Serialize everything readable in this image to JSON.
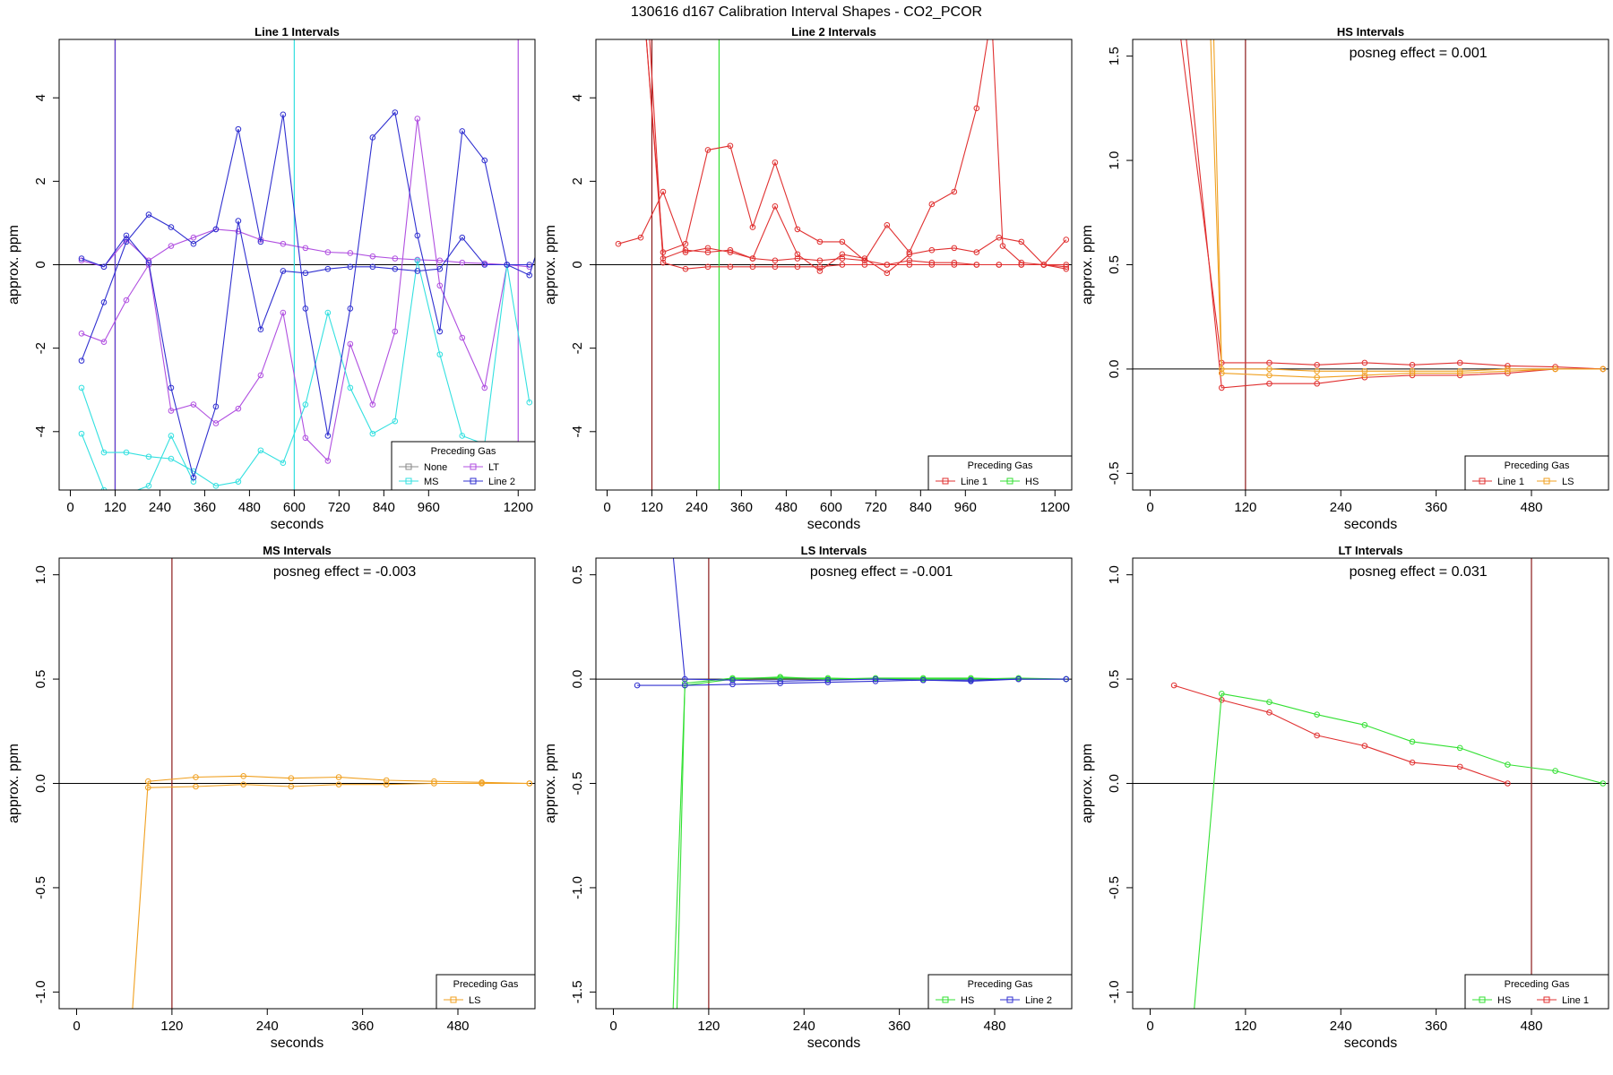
{
  "page_title": "130616  d167   Calibration Interval Shapes - CO2_PCOR",
  "chart_data": [
    {
      "type": "line",
      "title": "Line 1 Intervals",
      "xlabel": "seconds",
      "ylabel": "approx. ppm",
      "xlim": [
        -30,
        1245
      ],
      "ylim": [
        -5.4,
        5.4
      ],
      "xticks": [
        0,
        120,
        240,
        360,
        480,
        600,
        720,
        840,
        960,
        1200
      ],
      "yticks": [
        -4,
        -2,
        0,
        2,
        4
      ],
      "vlines": [
        {
          "x": 120,
          "color": "#8b1a1a"
        },
        {
          "x": 120,
          "color": "#5a3fd6"
        },
        {
          "x": 600,
          "color": "#33e0e0"
        },
        {
          "x": 1200,
          "color": "#b04fe0"
        }
      ],
      "legend": {
        "title": "Preceding Gas",
        "position": "bottom-right",
        "columns": 2,
        "entries": [
          {
            "label": "None",
            "color": "#8a8a8a"
          },
          {
            "label": "LT",
            "color": "#b04fe0"
          },
          {
            "label": "MS",
            "color": "#33e0e0"
          },
          {
            "label": "Line 2",
            "color": "#3030d0"
          }
        ]
      },
      "series": [
        {
          "color": "#b04fe0",
          "x": [
            30,
            90,
            150,
            210,
            270,
            330,
            390,
            450,
            510,
            570,
            630,
            690,
            750,
            810,
            870,
            930,
            990,
            1050,
            1110,
            1170,
            1230
          ],
          "y": [
            0.1,
            -0.05,
            0.6,
            0.1,
            0.45,
            0.65,
            0.85,
            0.8,
            0.6,
            0.5,
            0.4,
            0.3,
            0.28,
            0.2,
            0.15,
            0.12,
            0.1,
            0.05,
            0.03,
            0.0,
            -0.05
          ]
        },
        {
          "color": "#b04fe0",
          "x": [
            30,
            90,
            150,
            210,
            270,
            330,
            390,
            450,
            510,
            570,
            630,
            690,
            750,
            810,
            870,
            930,
            990,
            1050,
            1110,
            1170
          ],
          "y": [
            -1.65,
            -1.85,
            -0.85,
            0.0,
            -3.5,
            -3.35,
            -3.8,
            -3.45,
            -2.65,
            -1.15,
            -4.15,
            -4.7,
            -1.9,
            -3.35,
            -1.6,
            3.5,
            -0.5,
            -1.75,
            -2.95,
            0.0
          ]
        },
        {
          "color": "#33e0e0",
          "x": [
            30,
            90,
            150,
            210,
            270,
            330,
            390,
            450,
            510,
            570,
            630,
            690,
            750,
            810,
            870,
            930,
            990,
            1050,
            1110,
            1170,
            1230
          ],
          "y": [
            -2.95,
            -4.5,
            -4.5,
            -4.6,
            -4.65,
            -4.95,
            -5.3,
            -5.2,
            -4.45,
            -4.75,
            -3.35,
            -1.15,
            -2.95,
            -4.05,
            -3.75,
            0.1,
            -2.15,
            -4.1,
            -4.3,
            0.0,
            -3.3
          ]
        },
        {
          "color": "#33e0e0",
          "x": [
            30,
            90,
            150,
            210,
            270,
            330
          ],
          "y": [
            -4.05,
            -5.4,
            -5.5,
            -5.3,
            -4.1,
            -5.2
          ]
        },
        {
          "color": "#3030d0",
          "x": [
            30,
            90,
            150,
            210,
            270,
            330,
            390,
            450,
            510,
            570,
            630,
            690,
            750,
            810,
            870,
            930,
            990,
            1050,
            1110,
            1170,
            1230,
            1260
          ],
          "y": [
            -2.3,
            -0.9,
            0.55,
            1.2,
            0.9,
            0.5,
            0.85,
            3.25,
            0.55,
            3.6,
            -1.05,
            -4.1,
            -1.05,
            3.05,
            3.65,
            0.7,
            -1.6,
            3.2,
            2.5,
            0.0,
            -0.25,
            0.6
          ]
        },
        {
          "color": "#3030d0",
          "x": [
            30,
            90,
            150,
            210,
            270,
            330,
            390,
            450,
            510,
            570,
            630,
            690,
            750,
            810,
            870,
            930,
            990,
            1050,
            1110,
            1170,
            1230
          ],
          "y": [
            0.15,
            -0.05,
            0.7,
            0.05,
            -2.95,
            -5.1,
            -3.4,
            1.05,
            -1.55,
            -0.15,
            -0.2,
            -0.1,
            -0.05,
            -0.05,
            -0.1,
            -0.15,
            -0.1,
            0.65,
            0.0,
            0.0,
            0.0
          ]
        }
      ]
    },
    {
      "type": "line",
      "title": "Line 2 Intervals",
      "xlabel": "seconds",
      "ylabel": "approx. ppm",
      "xlim": [
        -30,
        1245
      ],
      "ylim": [
        -5.4,
        5.4
      ],
      "xticks": [
        0,
        120,
        240,
        360,
        480,
        600,
        720,
        840,
        960,
        1200
      ],
      "yticks": [
        -4,
        -2,
        0,
        2,
        4
      ],
      "vlines": [
        {
          "x": 120,
          "color": "#8b1a1a"
        },
        {
          "x": 300,
          "color": "#33e033"
        }
      ],
      "legend": {
        "title": "Preceding Gas",
        "position": "bottom-right",
        "columns": 2,
        "entries": [
          {
            "label": "Line 1",
            "color": "#e03030"
          },
          {
            "label": "HS",
            "color": "#33e033"
          }
        ]
      },
      "series": [
        {
          "color": "#e03030",
          "x": [
            30,
            90,
            150,
            210,
            270,
            330,
            390,
            450,
            510,
            570,
            630,
            690,
            750,
            810,
            870,
            930,
            990,
            1050,
            1110,
            1170,
            1230
          ],
          "y": [
            0.5,
            0.65,
            1.75,
            0.3,
            0.4,
            0.3,
            0.15,
            0.1,
            0.15,
            0.1,
            0.15,
            0.1,
            0.0,
            0.1,
            0.05,
            0.05,
            0.0,
            0.0,
            0.0,
            0.0,
            0.6
          ]
        },
        {
          "color": "#e03030",
          "x": [
            100,
            150,
            210,
            270,
            330,
            390,
            450,
            510,
            570,
            630,
            690,
            750,
            810,
            870,
            930,
            990,
            1030,
            1060,
            1110,
            1170,
            1230
          ],
          "y": [
            6.0,
            0.3,
            0.5,
            2.75,
            2.85,
            0.9,
            2.45,
            0.85,
            0.55,
            0.55,
            0.1,
            0.95,
            0.3,
            1.45,
            1.75,
            3.75,
            6.0,
            0.45,
            0.05,
            0.0,
            0.0
          ]
        },
        {
          "color": "#e03030",
          "x": [
            100,
            150,
            210,
            270,
            330,
            390,
            450,
            510,
            570,
            630,
            690,
            750,
            810,
            870,
            930,
            990,
            1050,
            1110,
            1170,
            1230
          ],
          "y": [
            6.0,
            0.15,
            0.35,
            0.3,
            0.35,
            0.15,
            1.4,
            0.25,
            -0.15,
            0.25,
            0.15,
            -0.2,
            0.25,
            0.35,
            0.4,
            0.3,
            0.65,
            0.55,
            0.0,
            -0.1
          ]
        },
        {
          "color": "#e03030",
          "x": [
            110,
            150,
            210,
            270,
            330,
            390,
            450,
            510,
            570,
            630,
            690,
            750,
            810,
            870,
            930,
            990,
            1050,
            1110,
            1170,
            1230
          ],
          "y": [
            6.0,
            0.05,
            -0.1,
            -0.05,
            -0.05,
            -0.05,
            -0.05,
            -0.05,
            -0.05,
            0.0,
            0.0,
            0.0,
            0.0,
            0.0,
            0.0,
            0.0,
            0.0,
            0.0,
            0.0,
            -0.05
          ]
        }
      ]
    },
    {
      "type": "line",
      "title": "HS Intervals",
      "xlabel": "seconds",
      "ylabel": "approx. ppm",
      "annotation": "posneg effect = 0.001",
      "xlim": [
        -22,
        577
      ],
      "ylim": [
        -0.58,
        1.58
      ],
      "xticks": [
        0,
        120,
        240,
        360,
        480
      ],
      "yticks": [
        -0.5,
        0.0,
        0.5,
        1.0,
        1.5
      ],
      "vlines": [
        {
          "x": 120,
          "color": "#8b1a1a"
        }
      ],
      "legend": {
        "title": "Preceding Gas",
        "position": "bottom-right",
        "columns": 2,
        "entries": [
          {
            "label": "Line 1",
            "color": "#e03030"
          },
          {
            "label": "LS",
            "color": "#f0a020"
          }
        ]
      },
      "series": [
        {
          "color": "#e03030",
          "x": [
            38,
            90,
            150,
            210,
            270,
            330,
            390,
            450,
            510,
            570
          ],
          "y": [
            1.6,
            0.03,
            0.03,
            0.02,
            0.03,
            0.02,
            0.03,
            0.015,
            0.01,
            0.0
          ]
        },
        {
          "color": "#e03030",
          "x": [
            45,
            90,
            150,
            210,
            270,
            330,
            390,
            450,
            510,
            570
          ],
          "y": [
            1.6,
            -0.09,
            -0.07,
            -0.07,
            -0.04,
            -0.03,
            -0.03,
            -0.02,
            0.0,
            0.0
          ]
        },
        {
          "color": "#f0a020",
          "x": [
            76,
            90,
            150,
            210,
            270,
            330,
            390,
            450,
            510,
            570
          ],
          "y": [
            1.6,
            -0.02,
            -0.03,
            -0.04,
            -0.03,
            -0.02,
            -0.02,
            -0.01,
            0.0,
            0.0
          ]
        },
        {
          "color": "#f0a020",
          "x": [
            80,
            90,
            150,
            210,
            270,
            330,
            390,
            450,
            510,
            570
          ],
          "y": [
            1.6,
            0.0,
            0.0,
            -0.01,
            -0.01,
            -0.01,
            -0.01,
            0.0,
            0.0,
            0.0
          ]
        }
      ]
    },
    {
      "type": "line",
      "title": "MS Intervals",
      "xlabel": "seconds",
      "ylabel": "approx. ppm",
      "annotation": "posneg effect = -0.003",
      "xlim": [
        -22,
        577
      ],
      "ylim": [
        -1.08,
        1.08
      ],
      "xticks": [
        0,
        120,
        240,
        360,
        480
      ],
      "yticks": [
        -1.0,
        -0.5,
        0.0,
        0.5,
        1.0
      ],
      "vlines": [
        {
          "x": 120,
          "color": "#8b1a1a"
        }
      ],
      "legend": {
        "title": "Preceding Gas",
        "position": "bottom-right",
        "columns": 1,
        "entries": [
          {
            "label": "LS",
            "color": "#f0a020"
          }
        ]
      },
      "series": [
        {
          "color": "#f0a020",
          "x": [
            70,
            90,
            150,
            210,
            270,
            330,
            390,
            450,
            510,
            570
          ],
          "y": [
            -1.1,
            0.01,
            0.03,
            0.035,
            0.025,
            0.03,
            0.015,
            0.01,
            0.005,
            0.0
          ]
        },
        {
          "color": "#f0a020",
          "x": [
            90,
            150,
            210,
            270,
            330,
            390,
            450,
            510,
            570
          ],
          "y": [
            -0.02,
            -0.015,
            -0.005,
            -0.015,
            -0.005,
            -0.005,
            0.0,
            0.0,
            0.0
          ]
        }
      ]
    },
    {
      "type": "line",
      "title": "LS Intervals",
      "xlabel": "seconds",
      "ylabel": "approx. ppm",
      "annotation": "posneg effect = -0.001",
      "xlim": [
        -22,
        577
      ],
      "ylim": [
        -1.58,
        0.58
      ],
      "xticks": [
        0,
        120,
        240,
        360,
        480
      ],
      "yticks": [
        -1.5,
        -1.0,
        -0.5,
        0.0,
        0.5
      ],
      "vlines": [
        {
          "x": 120,
          "color": "#8b1a1a"
        }
      ],
      "legend": {
        "title": "Preceding Gas",
        "position": "bottom-right",
        "columns": 2,
        "entries": [
          {
            "label": "HS",
            "color": "#33e033"
          },
          {
            "label": "Line 2",
            "color": "#3030d0"
          }
        ]
      },
      "series": [
        {
          "color": "#33e033",
          "x": [
            75,
            90,
            150,
            210,
            270,
            330,
            390,
            450,
            510,
            570
          ],
          "y": [
            -1.6,
            -0.03,
            0.0,
            0.01,
            0.0,
            0.005,
            0.005,
            0.005,
            0.0,
            0.0
          ]
        },
        {
          "color": "#33e033",
          "x": [
            80,
            90,
            150,
            210,
            270,
            330,
            390,
            450,
            510,
            570
          ],
          "y": [
            -1.6,
            -0.02,
            0.005,
            0.005,
            0.005,
            0.0,
            0.0,
            0.0,
            0.005,
            0.0
          ]
        },
        {
          "color": "#3030d0",
          "x": [
            30,
            90,
            150,
            210,
            270,
            330,
            390,
            450,
            510,
            570
          ],
          "y": [
            -0.03,
            -0.03,
            -0.025,
            -0.02,
            -0.015,
            -0.01,
            -0.005,
            -0.005,
            0.0,
            0.0
          ]
        },
        {
          "color": "#3030d0",
          "x": [
            75,
            90,
            150,
            210,
            270,
            330,
            390,
            450,
            510,
            570
          ],
          "y": [
            0.6,
            0.0,
            -0.005,
            -0.01,
            -0.005,
            0.0,
            -0.005,
            -0.01,
            0.0,
            0.0
          ]
        }
      ]
    },
    {
      "type": "line",
      "title": "LT Intervals",
      "xlabel": "seconds",
      "ylabel": "approx. ppm",
      "annotation": "posneg effect = 0.031",
      "xlim": [
        -22,
        577
      ],
      "ylim": [
        -1.08,
        1.08
      ],
      "xticks": [
        0,
        120,
        240,
        360,
        480
      ],
      "yticks": [
        -1.0,
        -0.5,
        0.0,
        0.5,
        1.0
      ],
      "vlines": [
        {
          "x": 480,
          "color": "#8b1a1a"
        }
      ],
      "legend": {
        "title": "Preceding Gas",
        "position": "bottom-right",
        "columns": 2,
        "entries": [
          {
            "label": "HS",
            "color": "#33e033"
          },
          {
            "label": "Line 1",
            "color": "#e03030"
          }
        ]
      },
      "series": [
        {
          "color": "#e03030",
          "x": [
            30,
            90,
            150,
            210,
            270,
            330,
            390,
            450
          ],
          "y": [
            0.47,
            0.4,
            0.34,
            0.23,
            0.18,
            0.1,
            0.08,
            0.0
          ]
        },
        {
          "color": "#33e033",
          "x": [
            55,
            90,
            150,
            210,
            270,
            330,
            390,
            450,
            510,
            570
          ],
          "y": [
            -1.1,
            0.43,
            0.39,
            0.33,
            0.28,
            0.2,
            0.17,
            0.09,
            0.06,
            0.0
          ]
        }
      ]
    }
  ]
}
